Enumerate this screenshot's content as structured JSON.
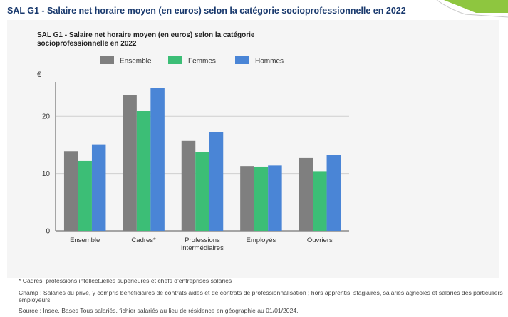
{
  "page": {
    "title": "SAL G1 - Salaire net horaire moyen (en euros) selon la catégorie socioprofessionnelle en 2022"
  },
  "colors": {
    "title": "#1a3a6e",
    "accent_green": "#8ec63f",
    "panel": "#f5f5f5"
  },
  "chart_data": {
    "type": "bar",
    "title": "SAL G1 - Salaire net horaire moyen (en euros) selon la catégorie socioprofessionnelle en 2022",
    "title_lines": [
      "SAL G1 - Salaire net horaire moyen (en euros) selon la catégorie",
      "socioprofessionnelle en 2022"
    ],
    "ylabel": "€",
    "xlabel": "",
    "ylim": [
      0,
      26
    ],
    "yticks": [
      0,
      10,
      20
    ],
    "grid": true,
    "legend_position": "top",
    "categories": [
      "Ensemble",
      "Cadres*",
      "Professions intermédiaires",
      "Employés",
      "Ouvriers"
    ],
    "category_lines": [
      [
        "Ensemble"
      ],
      [
        "Cadres*"
      ],
      [
        "Professions",
        "intermédiaires"
      ],
      [
        "Employés"
      ],
      [
        "Ouvriers"
      ]
    ],
    "series": [
      {
        "name": "Ensemble",
        "color": "#7f7f7f",
        "values": [
          13.9,
          23.7,
          15.7,
          11.3,
          12.7
        ]
      },
      {
        "name": "Femmes",
        "color": "#3cbe76",
        "values": [
          12.2,
          20.9,
          13.8,
          11.2,
          10.4
        ]
      },
      {
        "name": "Hommes",
        "color": "#4a85d6",
        "values": [
          15.1,
          25.0,
          17.2,
          11.4,
          13.2
        ]
      }
    ]
  },
  "footnotes": {
    "note": "* Cadres, professions intellectuelles supérieures et chefs d'entreprises salariés",
    "champ": "Champ : Salariés du privé, y compris bénéficiaires de contrats aidés et de contrats de professionnalisation ; hors apprentis, stagiaires, salariés agricoles et salariés des particuliers employeurs.",
    "source": "Source : Insee, Bases Tous salariés, fichier salariés au lieu de résidence en géographie au 01/01/2024."
  }
}
